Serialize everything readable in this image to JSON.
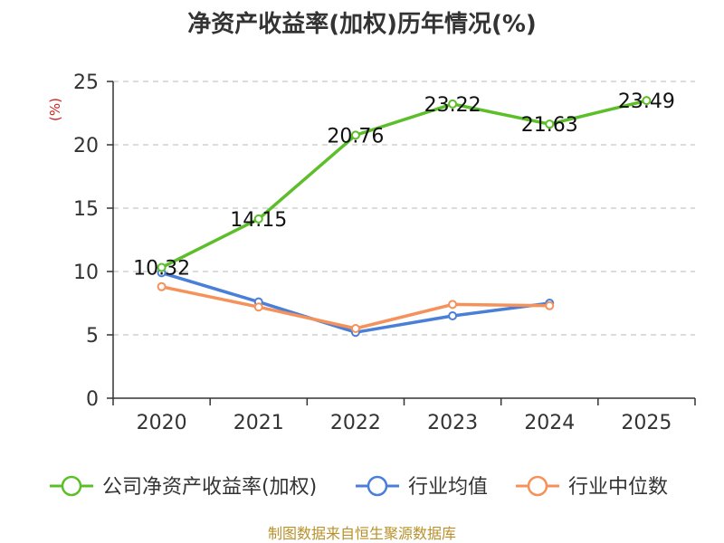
{
  "chart_data": {
    "type": "line",
    "title": "净资产收益率(加权)历年情况(%)",
    "ylabel": "(%)",
    "xlabel": "",
    "categories": [
      "2020",
      "2021",
      "2022",
      "2023",
      "2024",
      "2025"
    ],
    "ylim": [
      0,
      25
    ],
    "yticks": [
      0,
      5,
      10,
      15,
      20,
      25
    ],
    "grid": true,
    "legend_position": "bottom",
    "series": [
      {
        "name": "公司净资产收益率(加权)",
        "color": "#5cbf2a",
        "values": [
          10.32,
          14.15,
          20.76,
          23.22,
          21.63,
          23.49
        ],
        "labels": [
          "10.32",
          "14.15",
          "20.76",
          "23.22",
          "21.63",
          "23.49"
        ]
      },
      {
        "name": "行业均值",
        "color": "#4a7fd8",
        "values": [
          9.9,
          7.6,
          5.2,
          6.5,
          7.5,
          null
        ]
      },
      {
        "name": "行业中位数",
        "color": "#f5915a",
        "values": [
          8.8,
          7.2,
          5.5,
          7.4,
          7.3,
          null
        ]
      }
    ]
  },
  "source_text": "制图数据来自恒生聚源数据库"
}
